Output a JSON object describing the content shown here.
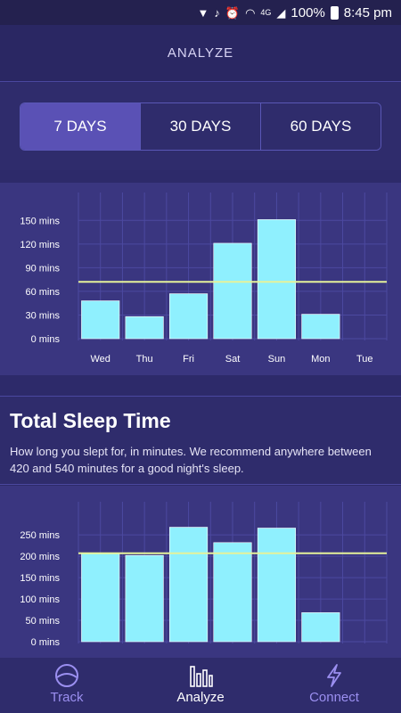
{
  "status_bar": {
    "battery": "100%",
    "time": "8:45 pm",
    "network": "4G"
  },
  "header": {
    "title": "ANALYZE"
  },
  "range_tabs": [
    {
      "label": "7 DAYS",
      "active": true
    },
    {
      "label": "30 DAYS",
      "active": false
    },
    {
      "label": "60 DAYS",
      "active": false
    }
  ],
  "chart_data": [
    {
      "type": "bar",
      "title": "",
      "xlabel": "",
      "ylabel": "",
      "categories": [
        "Wed",
        "Thu",
        "Fri",
        "Sat",
        "Sun",
        "Mon",
        "Tue"
      ],
      "values": [
        48,
        28,
        57,
        121,
        151,
        31,
        null
      ],
      "ylim": [
        0,
        165
      ],
      "yticks": [
        0,
        30,
        60,
        90,
        120,
        150
      ],
      "ytick_labels": [
        "0 mins",
        "30 mins",
        "60 mins",
        "90 mins",
        "120 mins",
        "150 mins"
      ],
      "reference_line": 72,
      "grid": true
    },
    {
      "type": "bar",
      "title": "Total Sleep Time",
      "xlabel": "",
      "ylabel": "",
      "categories": [
        "Wed",
        "Thu",
        "Fri",
        "Sat",
        "Sun",
        "Mon",
        "Tue"
      ],
      "values": [
        208,
        202,
        268,
        232,
        266,
        68,
        null
      ],
      "ylim": [
        0,
        290
      ],
      "yticks": [
        0,
        50,
        100,
        150,
        200,
        250
      ],
      "ytick_labels": [
        "0 mins",
        "50 mins",
        "100 mins",
        "150 mins",
        "200 mins",
        "250 mins"
      ],
      "reference_line": 207,
      "grid": true
    }
  ],
  "info": {
    "title": "Total Sleep Time",
    "description": "How long you slept for, in minutes. We recommend anywhere between 420 and 540 minutes for a good night's sleep."
  },
  "bottom_nav": [
    {
      "label": "Track",
      "icon": "moon-circle-icon",
      "active": false
    },
    {
      "label": "Analyze",
      "icon": "bar-chart-icon",
      "active": true
    },
    {
      "label": "Connect",
      "icon": "lightning-icon",
      "active": false
    }
  ],
  "colors": {
    "bar": "#8ff0fe",
    "reference_line": "#e5f29a",
    "active_tab": "#5a51b5",
    "panel": "#3a3680",
    "background": "#2d2a6a",
    "inactive_nav": "#9b8ff0"
  }
}
